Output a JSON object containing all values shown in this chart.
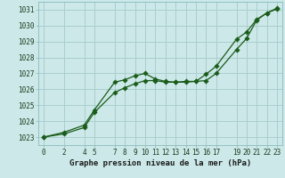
{
  "title": "Graphe pression niveau de la mer (hPa)",
  "bg_color": "#cce8e8",
  "grid_color": "#aacece",
  "line_color": "#1a5c1a",
  "marker_color": "#1a5c1a",
  "xlim": [
    -0.5,
    23.5
  ],
  "ylim": [
    1022.5,
    1031.5
  ],
  "xticks": [
    0,
    2,
    4,
    5,
    7,
    8,
    9,
    10,
    11,
    12,
    13,
    14,
    15,
    16,
    17,
    19,
    20,
    21,
    22,
    23
  ],
  "yticks": [
    1023,
    1024,
    1025,
    1026,
    1027,
    1028,
    1029,
    1030,
    1031
  ],
  "line1_x": [
    0,
    2,
    4,
    5,
    7,
    8,
    9,
    10,
    11,
    12,
    13,
    14,
    15,
    16,
    17,
    19,
    20,
    21,
    22,
    23
  ],
  "line1_y": [
    1023.0,
    1023.3,
    1023.75,
    1024.7,
    1026.45,
    1026.6,
    1026.85,
    1027.0,
    1026.65,
    1026.5,
    1026.45,
    1026.45,
    1026.5,
    1026.55,
    1027.0,
    1028.5,
    1029.2,
    1030.35,
    1030.8,
    1031.05
  ],
  "line2_x": [
    0,
    2,
    4,
    5,
    7,
    8,
    9,
    10,
    11,
    12,
    13,
    14,
    15,
    16,
    17,
    19,
    20,
    21,
    22,
    23
  ],
  "line2_y": [
    1023.0,
    1023.2,
    1023.6,
    1024.55,
    1025.8,
    1026.1,
    1026.35,
    1026.55,
    1026.55,
    1026.45,
    1026.45,
    1026.5,
    1026.5,
    1026.95,
    1027.45,
    1029.15,
    1029.6,
    1030.4,
    1030.8,
    1031.1
  ]
}
